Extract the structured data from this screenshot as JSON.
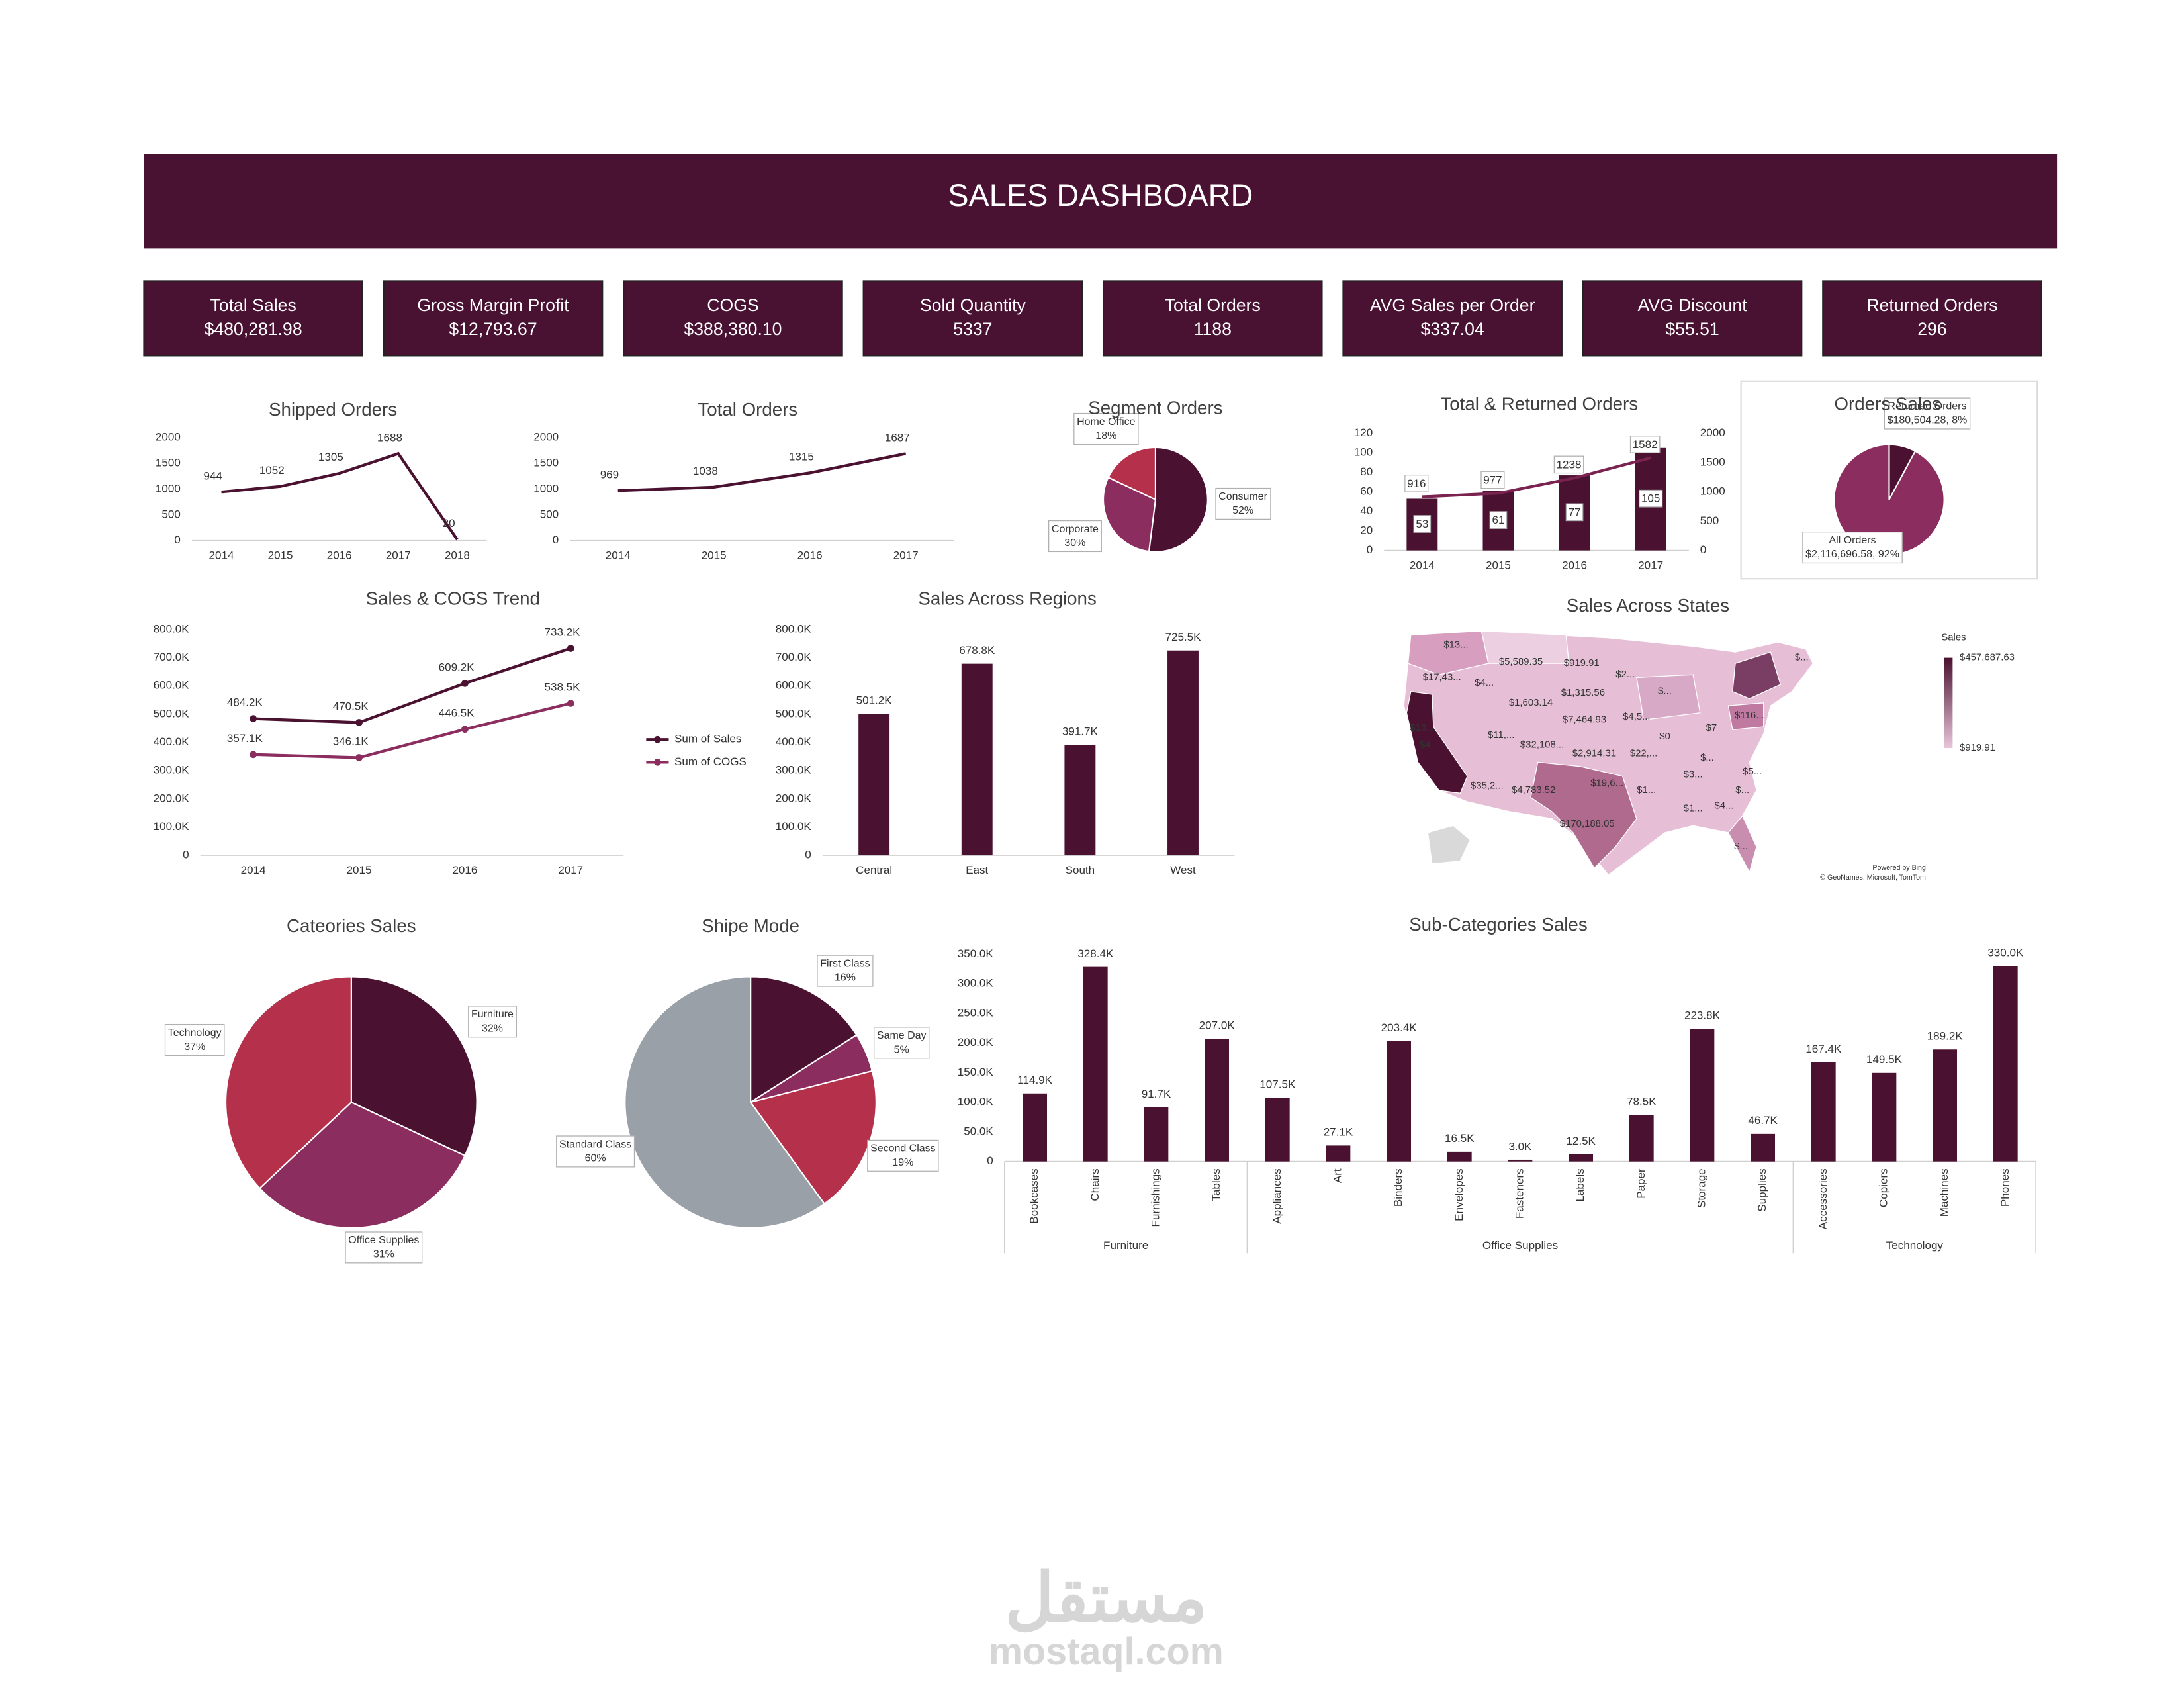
{
  "header": {
    "title": "SALES DASHBOARD"
  },
  "kpis": [
    {
      "label": "Total Sales",
      "value": "$480,281.98"
    },
    {
      "label": "Gross Margin Profit",
      "value": "$12,793.67"
    },
    {
      "label": "COGS",
      "value": "$388,380.10"
    },
    {
      "label": "Sold Quantity",
      "value": 5337
    },
    {
      "label": "Total Orders",
      "value": 1188
    },
    {
      "label": "AVG Sales per Order",
      "value": "$337.04"
    },
    {
      "label": "AVG Discount",
      "value": "$55.51"
    },
    {
      "label": "Returned  Orders",
      "value": 296
    }
  ],
  "chart_data": [
    {
      "type": "line",
      "title": "Shipped Orders",
      "categories": [
        "2014",
        "2015",
        "2016",
        "2017",
        "2018"
      ],
      "series": [
        {
          "color": "#4a1230",
          "values": [
            944,
            1052,
            1305,
            1688,
            20
          ]
        }
      ],
      "data_labels": true,
      "ylim": [
        0,
        2000
      ],
      "yticks": [
        0,
        500,
        1000,
        1500,
        2000
      ]
    },
    {
      "type": "line",
      "title": "Total Orders",
      "categories": [
        "2014",
        "2015",
        "2016",
        "2017"
      ],
      "series": [
        {
          "color": "#4a1230",
          "values": [
            969,
            1038,
            1315,
            1687
          ]
        }
      ],
      "data_labels": true,
      "ylim": [
        0,
        2000
      ],
      "yticks": [
        0,
        500,
        1000,
        1500,
        2000
      ]
    },
    {
      "type": "pie",
      "title": "Segment Orders",
      "categories": [
        "Consumer",
        "Corporate",
        "Home Office"
      ],
      "values": [
        52,
        30,
        18
      ],
      "value_labels": [
        "52%",
        "30%",
        "18%"
      ],
      "colors": [
        "#4a1230",
        "#8b2d5e",
        "#b5304a"
      ]
    },
    {
      "type": "combo",
      "title": "Total & Returned Orders",
      "categories": [
        "2014",
        "2015",
        "2016",
        "2017"
      ],
      "series": [
        {
          "kind": "bar",
          "color": "#4a1230",
          "values": [
            53,
            61,
            77,
            105
          ]
        },
        {
          "kind": "line",
          "axis": "y2",
          "color": "#7a2351",
          "values": [
            916,
            977,
            1238,
            1582
          ]
        }
      ],
      "ylim": [
        0,
        120
      ],
      "yticks": [
        0,
        20,
        40,
        60,
        80,
        100,
        120
      ],
      "y2lim": [
        0,
        2000
      ],
      "y2ticks": [
        0,
        500,
        1000,
        1500,
        2000
      ]
    },
    {
      "type": "pie",
      "title": "Orders Sales",
      "categories": [
        "Returned Orders",
        "All Orders"
      ],
      "values": [
        180504.28,
        2116696.58
      ],
      "value_labels": [
        "$180,504.28, 8%",
        "$2,116,696.58, 92%"
      ],
      "colors": [
        "#4a1230",
        "#8b2d5e"
      ]
    },
    {
      "type": "line",
      "title": "Sales & COGS Trend",
      "categories": [
        "2014",
        "2015",
        "2016",
        "2017"
      ],
      "series": [
        {
          "name": "Sum of Sales",
          "color": "#4a1230",
          "values": [
            484200,
            470500,
            609200,
            733200
          ],
          "value_labels": [
            "484.2K",
            "470.5K",
            "609.2K",
            "733.2K"
          ]
        },
        {
          "name": "Sum of COGS",
          "color": "#8b2d5e",
          "values": [
            357100,
            346100,
            446500,
            538500
          ],
          "value_labels": [
            "357.1K",
            "346.1K",
            "446.5K",
            "538.5K"
          ]
        }
      ],
      "data_labels": true,
      "markers": true,
      "legend": "right",
      "ylim": [
        0,
        800000
      ],
      "yticks": [
        0,
        {
          "value": 100000,
          "label": "100.0K"
        },
        {
          "value": 200000,
          "label": "200.0K"
        },
        {
          "value": 300000,
          "label": "300.0K"
        },
        {
          "value": 400000,
          "label": "400.0K"
        },
        {
          "value": 500000,
          "label": "500.0K"
        },
        {
          "value": 600000,
          "label": "600.0K"
        },
        {
          "value": 700000,
          "label": "700.0K"
        },
        {
          "value": 800000,
          "label": "800.0K"
        }
      ]
    },
    {
      "type": "bar",
      "title": "Sales Across Regions",
      "categories": [
        "Central",
        "East",
        "South",
        "West"
      ],
      "values": [
        501200,
        678800,
        391700,
        725500
      ],
      "value_labels": [
        "501.2K",
        "678.8K",
        "391.7K",
        "725.5K"
      ],
      "color": "#4a1230",
      "ylim": [
        0,
        800000
      ],
      "yticks": [
        0,
        {
          "value": 100000,
          "label": "100.0K"
        },
        {
          "value": 200000,
          "label": "200.0K"
        },
        {
          "value": 300000,
          "label": "300.0K"
        },
        {
          "value": 400000,
          "label": "400.0K"
        },
        {
          "value": 500000,
          "label": "500.0K"
        },
        {
          "value": 600000,
          "label": "600.0K"
        },
        {
          "value": 700000,
          "label": "700.0K"
        },
        {
          "value": 800000,
          "label": "800.0K"
        }
      ]
    },
    {
      "type": "map",
      "title": "Sales Across States",
      "state_labels": [
        "$13...",
        "$5,589.35",
        "$919.91",
        "$2...",
        "$...",
        "$17,43...",
        "$4...",
        "$1,603.14",
        "$1,315.56",
        "$7,464.93",
        "$4,5...",
        "$16...",
        "$11,...",
        "$32,108...",
        "$22,...",
        "$0",
        "$7",
        "$116...",
        "$...",
        "$4...",
        "$2,914.31",
        "$3...",
        "$5...",
        "$35,2...",
        "$4,783.52",
        "$19,6...",
        "$1...",
        "$...",
        "$1...",
        "$4...",
        "$170,188.05",
        "$...",
        "$..."
      ],
      "colorbar": {
        "title": "Sales",
        "colors": [
          "#e8c4da",
          "#4a1230"
        ],
        "max": {
          "value": 457687.63,
          "label": "$457,687.63"
        },
        "min": {
          "value": 919.91,
          "label": "$919.91"
        }
      },
      "credits": [
        "Powered by Bing",
        "© GeoNames, Microsoft, TomTom"
      ]
    },
    {
      "type": "pie",
      "title": "Cateories Sales",
      "categories": [
        "Furniture",
        "Office Supplies",
        "Technology"
      ],
      "values": [
        32,
        31,
        37
      ],
      "value_labels": [
        "32%",
        "31%",
        "37%"
      ],
      "colors": [
        "#4a1230",
        "#8b2d5e",
        "#b5304a"
      ]
    },
    {
      "type": "pie",
      "title": "Shipe Mode",
      "categories": [
        "First Class",
        "Same Day",
        "Second Class",
        "Standard Class"
      ],
      "values": [
        16,
        5,
        19,
        60
      ],
      "value_labels": [
        "16%",
        "5%",
        "19%",
        "60%"
      ],
      "colors": [
        "#4a1230",
        "#8b2d5e",
        "#b5304a",
        "#9aa0a8"
      ]
    },
    {
      "type": "bar",
      "title": "Sub-Categories Sales",
      "groups": [
        {
          "name": "Furniture",
          "categories": [
            "Bookcases",
            "Chairs",
            "Furnishings",
            "Tables"
          ],
          "values": [
            114900,
            328400,
            91700,
            207000
          ],
          "value_labels": [
            "114.9K",
            "328.4K",
            "91.7K",
            "207.0K"
          ]
        },
        {
          "name": "Office Supplies",
          "categories": [
            "Appliances",
            "Art",
            "Binders",
            "Envelopes",
            "Fasteners",
            "Labels",
            "Paper",
            "Storage",
            "Supplies"
          ],
          "values": [
            107500,
            27100,
            203400,
            16500,
            3000,
            12500,
            78500,
            223800,
            46700
          ],
          "value_labels": [
            "107.5K",
            "27.1K",
            "203.4K",
            "16.5K",
            "3.0K",
            "12.5K",
            "78.5K",
            "223.8K",
            "46.7K"
          ]
        },
        {
          "name": "Technology",
          "categories": [
            "Accessories",
            "Copiers",
            "Machines",
            "Phones"
          ],
          "values": [
            167400,
            149500,
            189200,
            330000
          ],
          "value_labels": [
            "167.4K",
            "149.5K",
            "189.2K",
            "330.0K"
          ]
        }
      ],
      "color": "#4a1230",
      "x_label_rotation": -90,
      "ylim": [
        0,
        350000
      ],
      "yticks": [
        0,
        {
          "value": 50000,
          "label": "50.0K"
        },
        {
          "value": 100000,
          "label": "100.0K"
        },
        {
          "value": 150000,
          "label": "150.0K"
        },
        {
          "value": 200000,
          "label": "200.0K"
        },
        {
          "value": 250000,
          "label": "250.0K"
        },
        {
          "value": 300000,
          "label": "300.0K"
        },
        {
          "value": 350000,
          "label": "350.0K"
        }
      ]
    }
  ],
  "watermark": {
    "arabic": "مستقل",
    "latin": "mostaql.com"
  }
}
